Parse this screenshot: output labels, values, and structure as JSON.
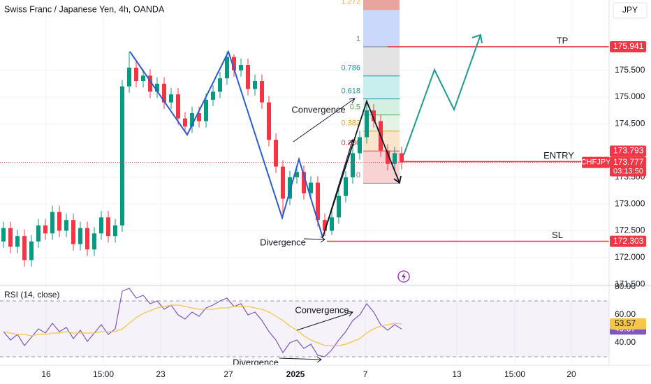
{
  "header": {
    "title": "Swiss Franc / Japanese Yen, 4h, OANDA",
    "currency": "JPY",
    "symbol": "CHFJPY",
    "countdown": "03:13:50"
  },
  "annotations": {
    "price_convergence": "Convergence",
    "price_divergence": "Divergence",
    "rsi_convergence": "Convergence",
    "rsi_divergence": "Divergence"
  },
  "chart_data": [
    {
      "type": "candlestick",
      "open": [
        172.3,
        172.55,
        172.2,
        172.4,
        171.95,
        172.3,
        172.6,
        172.45,
        172.85,
        172.5,
        172.7,
        172.25,
        172.55,
        172.15,
        172.45,
        172.75,
        172.4,
        172.6,
        175.2,
        175.55,
        175.3,
        175.4,
        175.1,
        175.25,
        174.9,
        175.05,
        174.6,
        174.45,
        174.7,
        174.55,
        174.95,
        175.1,
        175.35,
        175.75,
        175.5,
        175.6,
        175.15,
        175.3,
        174.9,
        174.2,
        173.7,
        173.1,
        173.5,
        173.6,
        173.2,
        173.4,
        172.7,
        172.5,
        172.75,
        173.15,
        173.5,
        173.95,
        174.25,
        174.75,
        174.55,
        174.0,
        173.75,
        173.95
      ],
      "high": [
        172.67,
        172.67,
        172.52,
        172.52,
        172.42,
        172.72,
        172.72,
        172.97,
        172.97,
        172.82,
        172.82,
        172.67,
        172.67,
        172.57,
        172.87,
        172.87,
        172.72,
        175.32,
        175.85,
        175.67,
        175.52,
        175.52,
        175.37,
        175.37,
        175.17,
        175.17,
        174.72,
        174.82,
        174.82,
        175.07,
        175.22,
        175.47,
        175.85,
        175.8,
        175.72,
        175.72,
        175.42,
        175.42,
        175.02,
        174.32,
        173.82,
        173.62,
        173.72,
        173.72,
        173.52,
        173.52,
        172.82,
        172.87,
        173.27,
        173.62,
        174.07,
        174.37,
        174.95,
        174.87,
        174.67,
        174.12,
        174.07,
        174.07
      ],
      "low": [
        172.18,
        172.08,
        172.08,
        171.83,
        171.83,
        172.18,
        172.33,
        172.33,
        172.38,
        172.38,
        172.13,
        172.13,
        172.03,
        172.03,
        172.33,
        172.28,
        172.28,
        172.48,
        175.08,
        175.18,
        175.18,
        174.98,
        174.98,
        174.78,
        174.78,
        174.48,
        174.35,
        174.33,
        174.43,
        174.43,
        174.83,
        174.98,
        175.23,
        175.38,
        175.38,
        175.03,
        175.03,
        174.78,
        174.08,
        173.58,
        172.75,
        172.98,
        173.38,
        173.08,
        173.08,
        172.58,
        172.4,
        172.42,
        172.63,
        173.03,
        173.38,
        173.83,
        174.13,
        174.43,
        173.88,
        173.63,
        173.63,
        173.65
      ],
      "close": [
        172.55,
        172.2,
        172.4,
        171.95,
        172.3,
        172.6,
        172.45,
        172.85,
        172.5,
        172.7,
        172.25,
        172.55,
        172.15,
        172.45,
        172.75,
        172.4,
        172.6,
        175.2,
        175.55,
        175.3,
        175.4,
        175.1,
        175.25,
        174.9,
        175.05,
        174.6,
        174.45,
        174.7,
        174.55,
        174.95,
        175.1,
        175.35,
        175.75,
        175.5,
        175.6,
        175.15,
        175.3,
        174.9,
        174.2,
        173.7,
        173.1,
        173.5,
        173.6,
        173.2,
        173.4,
        172.7,
        172.5,
        172.75,
        173.15,
        173.5,
        173.95,
        174.25,
        174.75,
        174.55,
        174.0,
        173.75,
        173.95,
        173.777
      ],
      "up_color": "#089981",
      "down_color": "#f23645",
      "ylim": [
        171.488,
        176.815
      ],
      "yticks": [
        {
          "value": 171.5,
          "label": "171.500"
        },
        {
          "value": 172,
          "label": "172.000"
        },
        {
          "value": 172.5,
          "label": "172.500"
        },
        {
          "value": 173,
          "label": "173.000"
        },
        {
          "value": 173.5,
          "label": "173.500"
        },
        {
          "value": 174.5,
          "label": "174.500"
        },
        {
          "value": 175,
          "label": "175.000"
        },
        {
          "value": 175.5,
          "label": "175.500"
        }
      ],
      "xlim": [
        -0.5,
        86.7
      ],
      "xticks": [
        {
          "value": 6.1,
          "label": "16"
        },
        {
          "value": 14.3,
          "label": "15:00"
        },
        {
          "value": 22.5,
          "label": "23"
        },
        {
          "value": 32.2,
          "label": "27"
        },
        {
          "value": 41.8,
          "label": "2025"
        },
        {
          "value": 51.8,
          "label": "7"
        },
        {
          "value": 64.9,
          "label": "13"
        },
        {
          "value": 73.2,
          "label": "15:00"
        },
        {
          "value": 81.3,
          "label": "20"
        }
      ],
      "grid": true,
      "levels": [
        {
          "name": "TP",
          "value": 175.941
        },
        {
          "name": "ENTRY",
          "value": 173.793
        },
        {
          "name": "SL",
          "value": 172.303
        }
      ],
      "level_color": "#f23645",
      "fibonacci": {
        "anchors": [
          173.39,
          175.941
        ],
        "levels": [
          1.272,
          1,
          0.786,
          0.618,
          0.5,
          0.382,
          0.236,
          0
        ],
        "colors": [
          "#c9d8fb",
          "#e3e3e3",
          "#c9eeee",
          "#d5efe1",
          "#e4f3e6",
          "#fbe4cc",
          "#f9d3d3"
        ],
        "label_colors": [
          "#f0b429",
          "#787b86",
          "#2196a3",
          "#2196a3",
          "#4caf50",
          "#f0a020",
          "#f23645",
          "#787b86"
        ]
      }
    },
    {
      "type": "line",
      "title": "RSI (14, close)",
      "series": [
        {
          "color": "#7e57c2",
          "values": [
            48,
            42,
            46,
            38,
            44,
            50,
            47,
            54,
            48,
            51,
            43,
            49,
            41,
            47,
            53,
            46,
            50,
            77,
            79,
            72,
            74,
            68,
            70,
            64,
            67,
            60,
            57,
            62,
            59,
            65,
            67,
            70,
            72,
            66,
            68,
            60,
            62,
            56,
            48,
            42,
            33,
            40,
            42,
            36,
            39,
            31,
            30,
            35,
            42,
            48,
            56,
            60,
            68,
            62,
            53,
            49,
            53,
            49.87
          ]
        },
        {
          "color": "#f7c548",
          "values": [
            48,
            47,
            46,
            46,
            45,
            46,
            46,
            47,
            47,
            48,
            47,
            47,
            47,
            47,
            48,
            48,
            48,
            50,
            54,
            58,
            61,
            63,
            65,
            66,
            67,
            67,
            66,
            65,
            64,
            64,
            64,
            65,
            65,
            66,
            66,
            66,
            65,
            64,
            62,
            59,
            56,
            52,
            49,
            45,
            42,
            40,
            38,
            38,
            38,
            39,
            41,
            43,
            47,
            50,
            52,
            53,
            54,
            53.57
          ]
        }
      ],
      "ylim": [
        24.5,
        80.5
      ],
      "yticks": [
        {
          "value": 80,
          "label": "80.00"
        },
        {
          "value": 60,
          "label": "60.00"
        },
        {
          "value": 40,
          "label": "40.00"
        }
      ],
      "band": [
        30,
        70
      ]
    }
  ]
}
